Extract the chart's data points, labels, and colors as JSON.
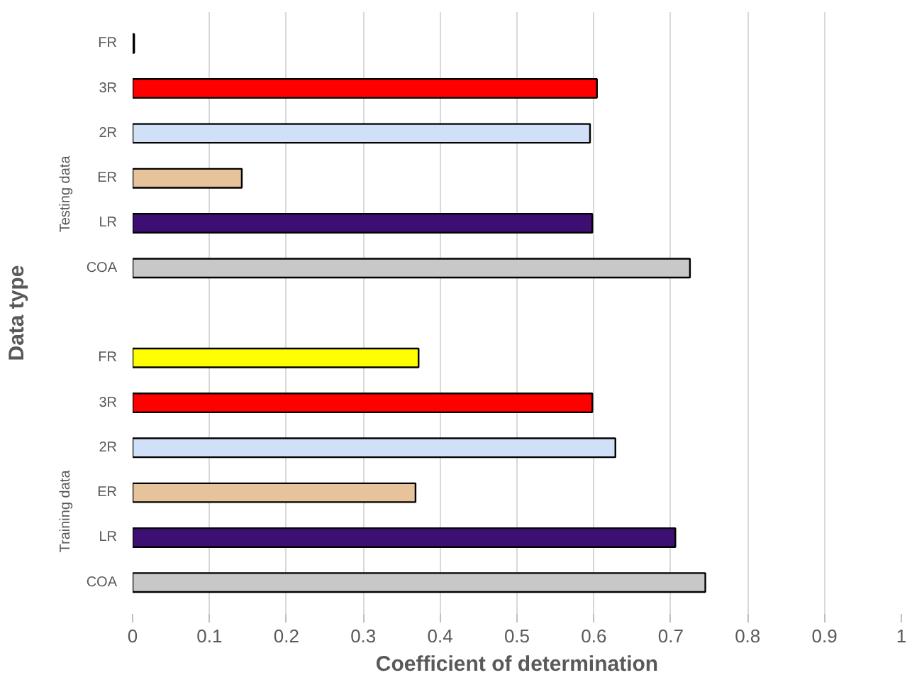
{
  "chart_data": {
    "type": "bar",
    "orientation": "horizontal",
    "xlabel": "Coefficient of determination",
    "ylabel": "Data type",
    "categories": [
      "FR",
      "3R",
      "2R",
      "ER",
      "LR",
      "COA",
      null,
      "FR",
      "3R",
      "2R",
      "ER",
      "LR",
      "COA"
    ],
    "values": [
      0.002,
      0.604,
      0.595,
      0.142,
      0.598,
      0.725,
      null,
      0.372,
      0.598,
      0.628,
      0.368,
      0.706,
      0.745
    ],
    "colors": [
      "#000000",
      "#ff0000",
      "#cfe0f7",
      "#e6c39a",
      "#3d0f73",
      "#c8c8c8",
      "#ffffff",
      "#ffff00",
      "#ff0000",
      "#cfe0f7",
      "#e6c39a",
      "#3d0f73",
      "#c8c8c8"
    ],
    "annotations": [
      "Testing data",
      "Training data"
    ],
    "xlim": [
      0,
      1
    ],
    "xticks": [
      0,
      0.1,
      0.2,
      0.3,
      0.4,
      0.5,
      0.6,
      0.7,
      0.8,
      0.9,
      1
    ],
    "grid": "x"
  }
}
